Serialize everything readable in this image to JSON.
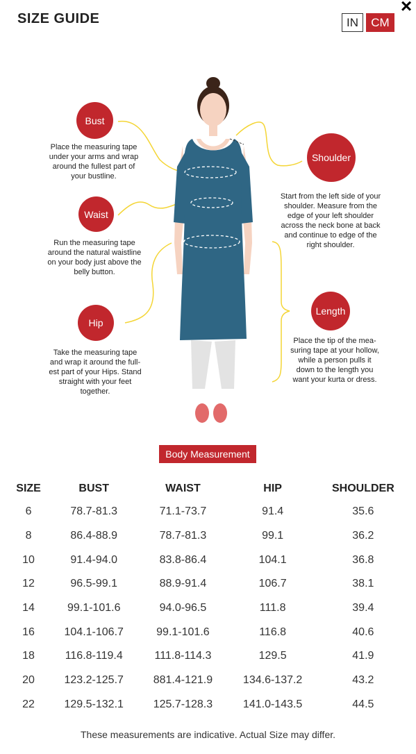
{
  "header": {
    "title": "SIZE GUIDE",
    "close_label": "×"
  },
  "units": {
    "in_label": "IN",
    "cm_label": "CM",
    "selected": "CM"
  },
  "colors": {
    "accent": "#c1272d",
    "dress": "#2f6684",
    "guide": "#f4d535"
  },
  "measurements": {
    "bust": {
      "label": "Bust",
      "desc": "Place the measuring tape under your arms and wrap around the fullest part of your bustline."
    },
    "waist": {
      "label": "Waist",
      "desc": "Run the measuring tape around the natural waistline on your body just above the belly button."
    },
    "hip": {
      "label": "Hip",
      "desc": "Take the measuring tape and wrap it around the full-est part of your Hips. Stand straight with your feet together."
    },
    "shoulder": {
      "label": "Shoulder",
      "desc": "Start from the left side of your shoulder. Measure from the edge of your left shoulder across the neck bone at back and continue to edge of the right shoulder."
    },
    "length": {
      "label": "Length",
      "desc": "Place the tip of the mea-suring tape at your hollow, while a person pulls it down to the length you want your kurta or dress."
    }
  },
  "table": {
    "badge": "Body Measurement",
    "headers": [
      "SIZE",
      "BUST",
      "WAIST",
      "HIP",
      "SHOULDER"
    ],
    "rows": [
      [
        "6",
        "78.7-81.3",
        "71.1-73.7",
        "91.4",
        "35.6"
      ],
      [
        "8",
        "86.4-88.9",
        "78.7-81.3",
        "99.1",
        "36.2"
      ],
      [
        "10",
        "91.4-94.0",
        "83.8-86.4",
        "104.1",
        "36.8"
      ],
      [
        "12",
        "96.5-99.1",
        "88.9-91.4",
        "106.7",
        "38.1"
      ],
      [
        "14",
        "99.1-101.6",
        "94.0-96.5",
        "111.8",
        "39.4"
      ],
      [
        "16",
        "104.1-106.7",
        "99.1-101.6",
        "116.8",
        "40.6"
      ],
      [
        "18",
        "116.8-119.4",
        "111.8-114.3",
        "129.5",
        "41.9"
      ],
      [
        "20",
        "123.2-125.7",
        "881.4-121.9",
        "134.6-137.2",
        "43.2"
      ],
      [
        "22",
        "129.5-132.1",
        "125.7-128.3",
        "141.0-143.5",
        "44.5"
      ]
    ]
  },
  "footer": {
    "note": "These measurements are indicative. Actual Size may differ."
  }
}
